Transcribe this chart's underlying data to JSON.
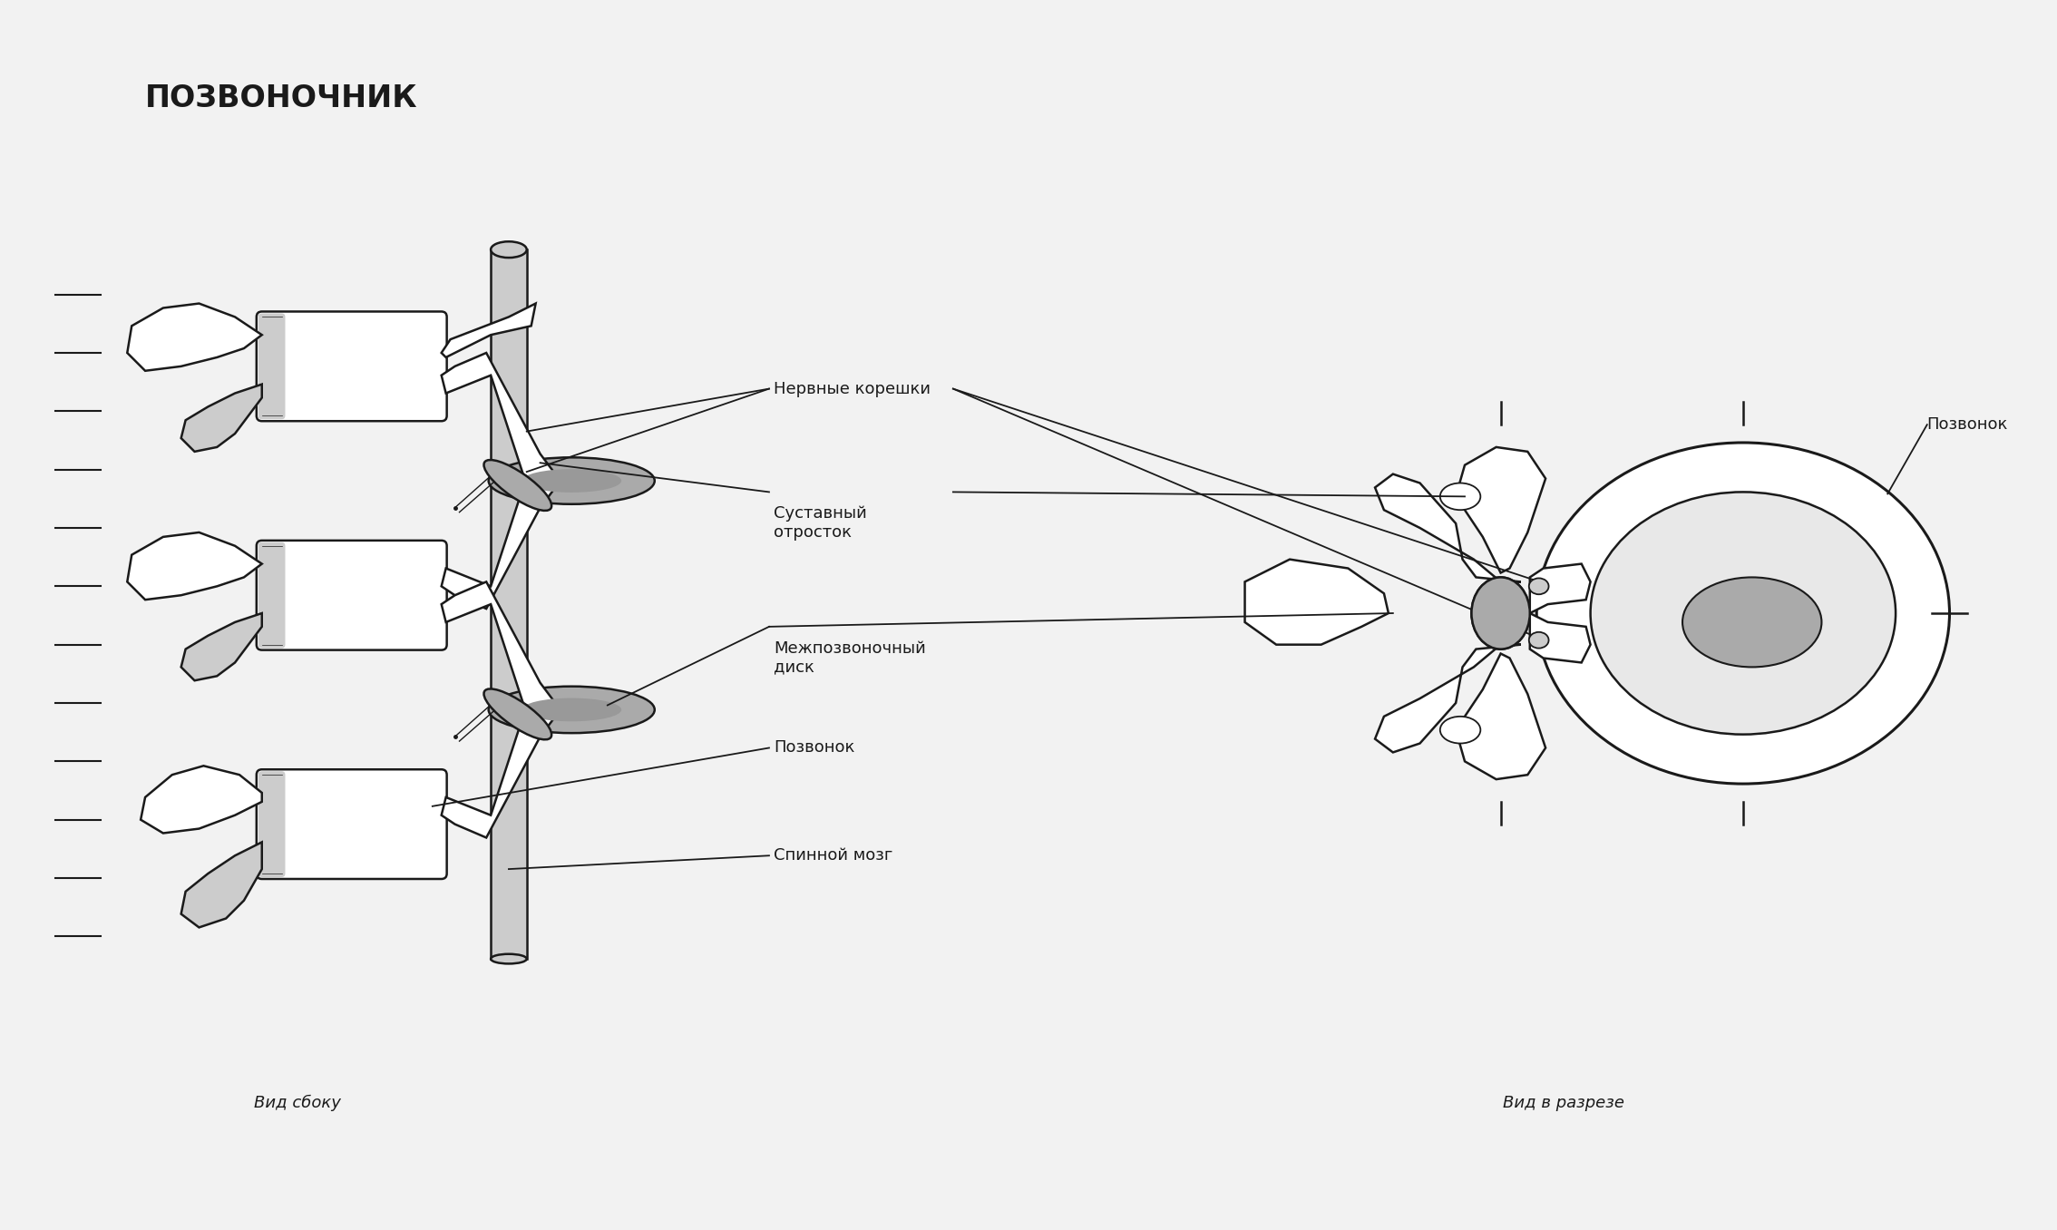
{
  "title": "ПОЗВОНОЧНИК",
  "label_nervnye": "Нервные корешки",
  "label_sustavny": "Суставный\nотросток",
  "label_mezhpozv": "Межпозвоночный\nдиск",
  "label_pozv1": "Позвонок",
  "label_spinnoj": "Спинной мозг",
  "label_vid_sboku": "Вид сбоку",
  "label_vid_razreze": "Вид в разрезе",
  "label_pozv2": "Позвонок",
  "bg_color": "#f2f2f2",
  "line_color": "#1a1a1a",
  "dark_gray": "#888888",
  "med_gray": "#aaaaaa",
  "light_gray": "#cccccc",
  "white_fill": "#ffffff",
  "near_white": "#f0f0f0"
}
